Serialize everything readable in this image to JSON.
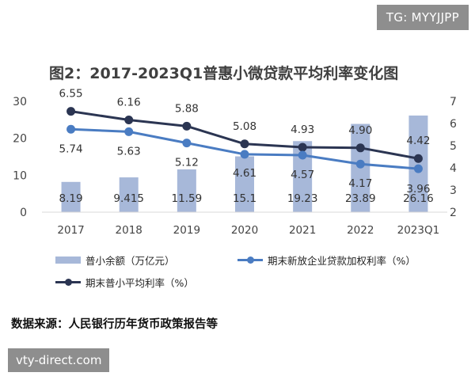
{
  "watermark_top": "TG: MYYJJPP",
  "watermark_bottom": "vty-direct.com",
  "source_note": "数据来源：人民银行历年货币政策报告等",
  "colors": {
    "bar": "#a7b8d9",
    "loan_rate_line": "#4a7cc2",
    "inclusive_rate_line": "#2b3552",
    "text": "#333333"
  },
  "chart_data": {
    "type": "bar",
    "title": "图2：2017-2023Q1普惠小微贷款平均利率变化图",
    "categories": [
      "2017",
      "2018",
      "2019",
      "2020",
      "2021",
      "2022",
      "2023Q1"
    ],
    "y_left": {
      "ticks": [
        "0",
        "10",
        "20",
        "30"
      ],
      "range": [
        0,
        30
      ]
    },
    "y_right": {
      "ticks": [
        "2",
        "3",
        "4",
        "5",
        "6",
        "7"
      ],
      "range": [
        2,
        7
      ]
    },
    "grid": false,
    "legend_position": "bottom",
    "series": [
      {
        "name": "普小余额（万亿元）",
        "kind": "bar",
        "axis": "left",
        "values": [
          8.19,
          9.415,
          11.59,
          15.1,
          19.23,
          23.89,
          26.16
        ],
        "labels": [
          "8.19",
          "9.415",
          "11.59",
          "15.1",
          "19.23",
          "23.89",
          "26.16"
        ]
      },
      {
        "name": "期末新放企业贷款加权利率（%）",
        "kind": "line",
        "axis": "right",
        "values": [
          5.74,
          5.63,
          5.12,
          4.61,
          4.57,
          4.17,
          3.96
        ],
        "labels": [
          "5.74",
          "5.63",
          "5.12",
          "4.61",
          "4.57",
          "4.17",
          "3.96"
        ]
      },
      {
        "name": "期末普小平均利率（%）",
        "kind": "line",
        "axis": "right",
        "values": [
          6.55,
          6.16,
          5.88,
          5.08,
          4.93,
          4.9,
          4.42
        ],
        "labels": [
          "6.55",
          "6.16",
          "5.88",
          "5.08",
          "4.93",
          "4.90",
          "4.42"
        ]
      }
    ]
  }
}
